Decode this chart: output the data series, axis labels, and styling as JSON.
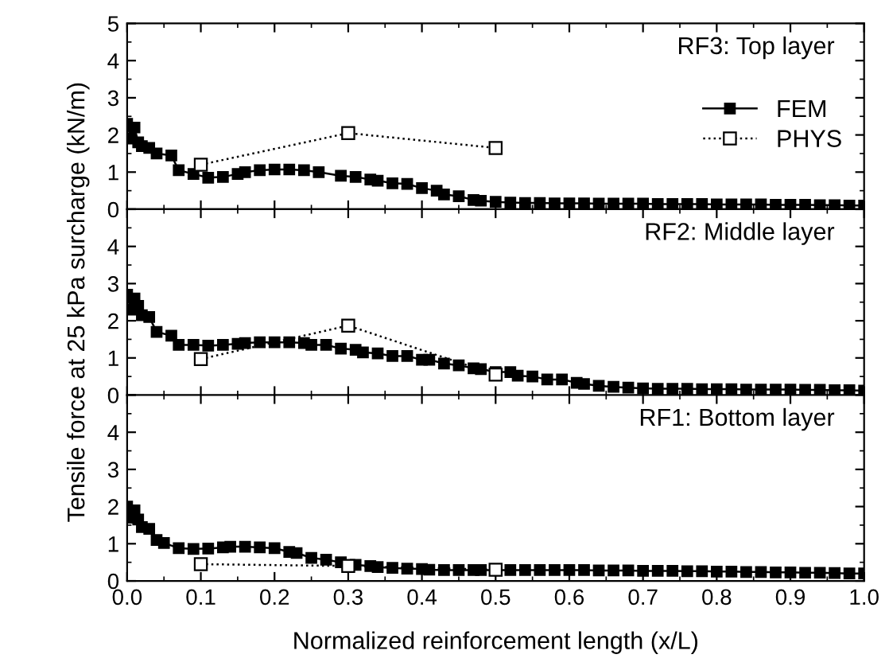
{
  "chart_data": [
    {
      "type": "line",
      "annotations": [
        "RF3: Top layer"
      ],
      "xlim": [
        0,
        1
      ],
      "ylim": [
        0,
        5
      ],
      "yticks": [
        0,
        1,
        2,
        3,
        4,
        5
      ],
      "xticks": [
        {
          "value": 0,
          "label": null
        },
        {
          "value": 0.1,
          "label": null
        },
        {
          "value": 0.2,
          "label": null
        },
        {
          "value": 0.3,
          "label": null
        },
        {
          "value": 0.4,
          "label": null
        },
        {
          "value": 0.5,
          "label": null
        },
        {
          "value": 0.6,
          "label": null
        },
        {
          "value": 0.7,
          "label": null
        },
        {
          "value": 0.8,
          "label": null
        },
        {
          "value": 0.9,
          "label": null
        },
        {
          "value": 1,
          "label": null
        }
      ],
      "tick_labels": "y",
      "legend": "right",
      "grid": false,
      "series": [
        {
          "name": "FEM",
          "color": "#000000",
          "marker": "square",
          "line_style": "solid",
          "x": [
            0,
            0.005,
            0.01,
            0.015,
            0.02,
            0.03,
            0.04,
            0.06,
            0.07,
            0.09,
            0.11,
            0.13,
            0.15,
            0.16,
            0.18,
            0.2,
            0.22,
            0.24,
            0.26,
            0.29,
            0.31,
            0.33,
            0.34,
            0.36,
            0.38,
            0.4,
            0.42,
            0.43,
            0.45,
            0.47,
            0.48,
            0.5,
            0.52,
            0.54,
            0.56,
            0.58,
            0.6,
            0.62,
            0.64,
            0.66,
            0.68,
            0.7,
            0.72,
            0.74,
            0.76,
            0.78,
            0.8,
            0.82,
            0.84,
            0.86,
            0.88,
            0.9,
            0.92,
            0.94,
            0.96,
            0.98,
            1.0
          ],
          "values": [
            2.3,
            1.9,
            2.2,
            1.8,
            1.7,
            1.65,
            1.5,
            1.45,
            1.05,
            0.95,
            0.85,
            0.87,
            0.95,
            1.0,
            1.05,
            1.07,
            1.07,
            1.05,
            1.0,
            0.9,
            0.87,
            0.8,
            0.77,
            0.7,
            0.68,
            0.57,
            0.5,
            0.4,
            0.35,
            0.25,
            0.23,
            0.2,
            0.18,
            0.17,
            0.17,
            0.16,
            0.16,
            0.16,
            0.15,
            0.15,
            0.15,
            0.15,
            0.14,
            0.14,
            0.14,
            0.14,
            0.13,
            0.13,
            0.13,
            0.13,
            0.12,
            0.12,
            0.12,
            0.11,
            0.11,
            0.1,
            0.1
          ]
        },
        {
          "name": "PHYS",
          "color": "#000000",
          "marker": "square",
          "line_style": "dotted",
          "x": [
            0.1,
            0.3,
            0.5
          ],
          "values": [
            1.2,
            2.05,
            1.65
          ]
        }
      ]
    },
    {
      "type": "line",
      "annotations": [
        "RF2: Middle layer"
      ],
      "ylabel": "Tensile force at 25 kPa surcharge (kN/m)",
      "xlim": [
        0,
        1
      ],
      "ylim": [
        0,
        5
      ],
      "yticks": [
        0,
        1,
        2,
        3,
        4,
        {
          "value": 5,
          "label": null
        }
      ],
      "xticks": [
        {
          "value": 0,
          "label": null
        },
        {
          "value": 0.1,
          "label": null
        },
        {
          "value": 0.2,
          "label": null
        },
        {
          "value": 0.3,
          "label": null
        },
        {
          "value": 0.4,
          "label": null
        },
        {
          "value": 0.5,
          "label": null
        },
        {
          "value": 0.6,
          "label": null
        },
        {
          "value": 0.7,
          "label": null
        },
        {
          "value": 0.8,
          "label": null
        },
        {
          "value": 0.9,
          "label": null
        },
        {
          "value": 1,
          "label": null
        }
      ],
      "tick_labels": "y",
      "grid": false,
      "series": [
        {
          "color": "#000000",
          "marker": "square",
          "line_style": "solid",
          "x": [
            0,
            0.005,
            0.01,
            0.015,
            0.02,
            0.03,
            0.04,
            0.06,
            0.07,
            0.09,
            0.11,
            0.13,
            0.15,
            0.16,
            0.18,
            0.2,
            0.22,
            0.24,
            0.25,
            0.27,
            0.29,
            0.31,
            0.32,
            0.34,
            0.36,
            0.38,
            0.4,
            0.41,
            0.43,
            0.45,
            0.47,
            0.48,
            0.5,
            0.52,
            0.53,
            0.55,
            0.57,
            0.59,
            0.61,
            0.62,
            0.64,
            0.66,
            0.68,
            0.7,
            0.72,
            0.74,
            0.76,
            0.78,
            0.8,
            0.82,
            0.84,
            0.86,
            0.88,
            0.9,
            0.92,
            0.94,
            0.96,
            0.98,
            1.0
          ],
          "values": [
            2.7,
            2.3,
            2.6,
            2.4,
            2.15,
            2.1,
            1.7,
            1.6,
            1.35,
            1.35,
            1.33,
            1.35,
            1.38,
            1.4,
            1.42,
            1.42,
            1.42,
            1.4,
            1.35,
            1.35,
            1.25,
            1.22,
            1.15,
            1.12,
            1.05,
            1.05,
            0.95,
            0.95,
            0.85,
            0.8,
            0.72,
            0.7,
            0.62,
            0.62,
            0.52,
            0.5,
            0.42,
            0.42,
            0.33,
            0.3,
            0.25,
            0.22,
            0.2,
            0.18,
            0.17,
            0.17,
            0.17,
            0.16,
            0.16,
            0.16,
            0.15,
            0.15,
            0.15,
            0.15,
            0.14,
            0.14,
            0.13,
            0.13,
            0.12
          ]
        },
        {
          "color": "#000000",
          "marker": "square",
          "line_style": "dotted",
          "x": [
            0.1,
            0.3,
            0.5
          ],
          "values": [
            0.97,
            1.87,
            0.55
          ]
        }
      ]
    },
    {
      "type": "line",
      "annotations": [
        "RF1: Bottom layer"
      ],
      "xlabel": "Normalized reinforcement length (x/L)",
      "xlim": [
        0,
        1
      ],
      "ylim": [
        0,
        5
      ],
      "yticks": [
        0,
        1,
        2,
        3,
        4,
        {
          "value": 5,
          "label": null
        }
      ],
      "xticks": [
        {
          "value": 0,
          "label": "0.0"
        },
        {
          "value": 0.1,
          "label": "0.1"
        },
        {
          "value": 0.2,
          "label": "0.2"
        },
        {
          "value": 0.3,
          "label": "0.3"
        },
        {
          "value": 0.4,
          "label": "0.4"
        },
        {
          "value": 0.5,
          "label": "0.5"
        },
        {
          "value": 0.6,
          "label": "0.6"
        },
        {
          "value": 0.7,
          "label": "0.7"
        },
        {
          "value": 0.8,
          "label": "0.8"
        },
        {
          "value": 0.9,
          "label": "0.9"
        },
        {
          "value": 1,
          "label": "1.0"
        }
      ],
      "grid": false,
      "series": [
        {
          "color": "#000000",
          "marker": "square",
          "line_style": "solid",
          "x": [
            0,
            0.005,
            0.01,
            0.015,
            0.02,
            0.03,
            0.04,
            0.05,
            0.07,
            0.09,
            0.11,
            0.13,
            0.14,
            0.16,
            0.18,
            0.2,
            0.22,
            0.23,
            0.25,
            0.27,
            0.29,
            0.31,
            0.33,
            0.34,
            0.36,
            0.38,
            0.4,
            0.41,
            0.43,
            0.45,
            0.47,
            0.48,
            0.5,
            0.52,
            0.54,
            0.56,
            0.58,
            0.6,
            0.62,
            0.64,
            0.66,
            0.68,
            0.7,
            0.72,
            0.74,
            0.76,
            0.78,
            0.8,
            0.82,
            0.84,
            0.86,
            0.88,
            0.9,
            0.92,
            0.94,
            0.96,
            0.98,
            1.0
          ],
          "values": [
            2.0,
            1.7,
            1.9,
            1.65,
            1.45,
            1.4,
            1.1,
            1.02,
            0.88,
            0.86,
            0.87,
            0.9,
            0.92,
            0.92,
            0.9,
            0.88,
            0.78,
            0.75,
            0.62,
            0.57,
            0.5,
            0.43,
            0.4,
            0.37,
            0.35,
            0.33,
            0.32,
            0.3,
            0.29,
            0.29,
            0.29,
            0.29,
            0.29,
            0.29,
            0.29,
            0.29,
            0.29,
            0.29,
            0.29,
            0.28,
            0.28,
            0.28,
            0.27,
            0.27,
            0.27,
            0.26,
            0.26,
            0.25,
            0.25,
            0.24,
            0.24,
            0.23,
            0.23,
            0.22,
            0.22,
            0.21,
            0.2,
            0.2
          ]
        },
        {
          "color": "#000000",
          "marker": "square",
          "line_style": "dotted",
          "x": [
            0.1,
            0.3,
            0.5
          ],
          "values": [
            0.45,
            0.4,
            0.3
          ]
        }
      ]
    }
  ]
}
